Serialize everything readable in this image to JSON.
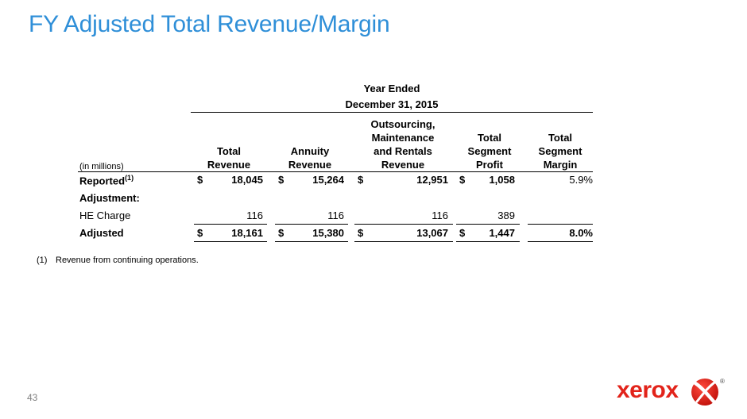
{
  "slide": {
    "title": "FY Adjusted Total Revenue/Margin",
    "page_number": "43"
  },
  "table": {
    "period_line1": "Year Ended",
    "period_line2": "December 31, 2015",
    "unit_label": "(in millions)",
    "columns": [
      "Total\nRevenue",
      "Annuity\nRevenue",
      "Outsourcing,\nMaintenance\nand Rentals\nRevenue",
      "Total\nSegment\nProfit",
      "Total\nSegment\nMargin"
    ],
    "rows": {
      "reported": {
        "label": "Reported",
        "footnote_ref": "(1)",
        "values": [
          "18,045",
          "15,264",
          "12,951",
          "1,058",
          "5.9%"
        ]
      },
      "adjustment": {
        "label": "Adjustment:"
      },
      "he_charge": {
        "label": "HE Charge",
        "values": [
          "116",
          "116",
          "116",
          "389",
          ""
        ]
      },
      "adjusted": {
        "label": "Adjusted",
        "values": [
          "18,161",
          "15,380",
          "13,067",
          "1,447",
          "8.0%"
        ]
      }
    },
    "currency_symbol": "$"
  },
  "footnote": {
    "mark": "(1)",
    "text": "Revenue from continuing operations."
  },
  "logo": {
    "wordmark": "xerox",
    "registered": "®",
    "brand_color": "#e2231a"
  }
}
